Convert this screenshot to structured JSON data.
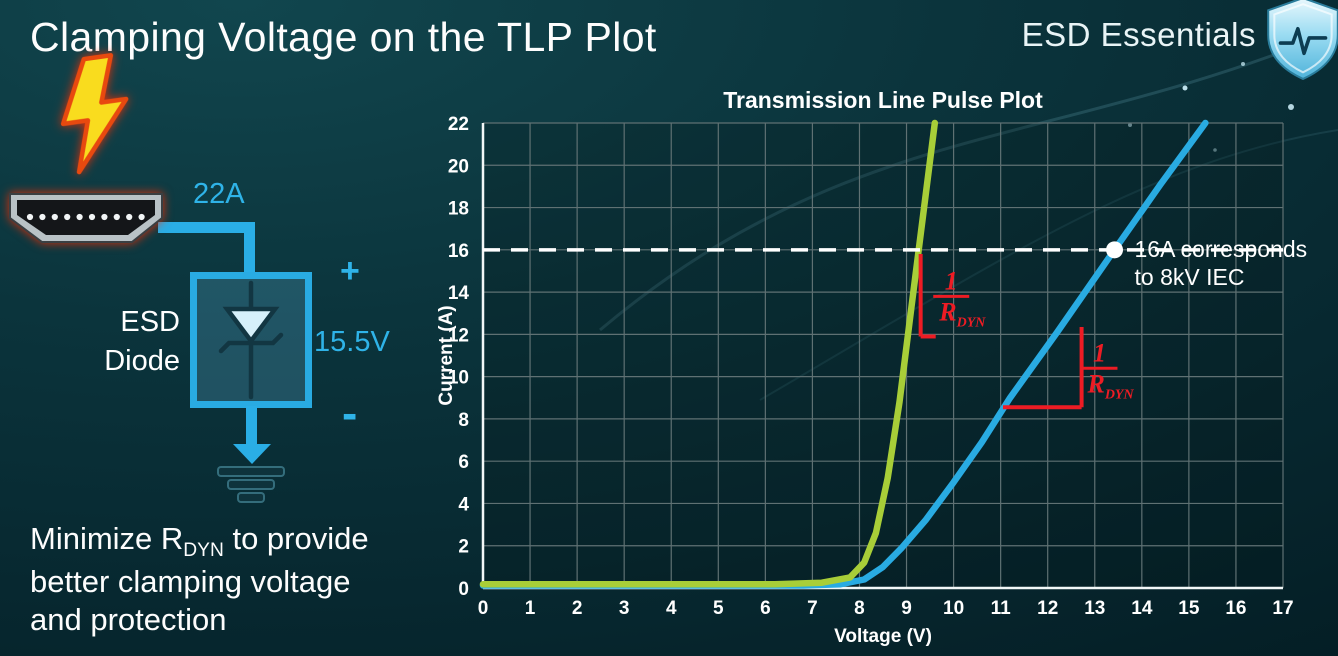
{
  "slide": {
    "title": "Clamping Voltage on the TLP Plot",
    "brand": "ESD Essentials"
  },
  "diagram": {
    "surge_current_label": "22A",
    "device_line1": "ESD",
    "device_line2": "Diode",
    "plus_label": "+",
    "minus_label": "-",
    "clamp_voltage_label": "15.5V",
    "accent_color": "#29abe2"
  },
  "footer": {
    "line1_pre": "Minimize R",
    "line1_sub": "DYN",
    "line1_post": " to provide",
    "line2": "better clamping voltage",
    "line3": "and protection"
  },
  "chart_data": {
    "type": "line",
    "title": "Transmission Line Pulse Plot",
    "xlabel": "Voltage (V)",
    "ylabel": "Current (A)",
    "xlim": [
      0,
      17
    ],
    "ylim": [
      0,
      22
    ],
    "x_ticks": [
      0,
      1,
      2,
      3,
      4,
      5,
      6,
      7,
      8,
      9,
      10,
      11,
      12,
      13,
      14,
      15,
      16,
      17
    ],
    "y_ticks": [
      0,
      2,
      4,
      6,
      8,
      10,
      12,
      14,
      16,
      18,
      20,
      22
    ],
    "grid": true,
    "grid_color": "#5f7173",
    "series": [
      {
        "name": "blue-high-rdyn",
        "color": "#29abe2",
        "points": [
          [
            0,
            0.12
          ],
          [
            6.8,
            0.12
          ],
          [
            7.6,
            0.18
          ],
          [
            8.1,
            0.4
          ],
          [
            8.5,
            1.0
          ],
          [
            8.9,
            1.9
          ],
          [
            9.4,
            3.2
          ],
          [
            10.0,
            5.0
          ],
          [
            10.6,
            6.9
          ],
          [
            11.2,
            9.0
          ],
          [
            12.2,
            12.1
          ],
          [
            13.42,
            16.0
          ],
          [
            14.4,
            19.1
          ],
          [
            15.35,
            22
          ]
        ]
      },
      {
        "name": "green-low-rdyn",
        "color": "#a8ce38",
        "points": [
          [
            0,
            0.18
          ],
          [
            6.2,
            0.18
          ],
          [
            7.2,
            0.25
          ],
          [
            7.8,
            0.5
          ],
          [
            8.1,
            1.2
          ],
          [
            8.35,
            2.6
          ],
          [
            8.6,
            5.2
          ],
          [
            8.85,
            8.8
          ],
          [
            9.1,
            13.2
          ],
          [
            9.35,
            17.6
          ],
          [
            9.6,
            22
          ]
        ]
      }
    ],
    "reference_line": {
      "y": 16,
      "color": "#ffffff",
      "style": "dashed"
    },
    "reference_point": {
      "x": 13.42,
      "y": 16,
      "color": "#ffffff"
    },
    "reference_label": {
      "line1": "16A corresponds",
      "line2": "to 8kV IEC",
      "color": "#ffffff"
    },
    "slope_label": {
      "numerator": "1",
      "denominator": "R",
      "denominator_sub": "DYN",
      "color": "#ed1c24"
    },
    "slope_markers": [
      {
        "segments": [
          [
            [
              9.3,
              15.8
            ],
            [
              9.3,
              11.9
            ]
          ],
          [
            [
              9.3,
              11.9
            ],
            [
              9.62,
              11.9
            ]
          ]
        ],
        "label_x": 9.95,
        "label_y": 13.7
      },
      {
        "segments": [
          [
            [
              11.05,
              8.55
            ],
            [
              12.72,
              8.55
            ]
          ],
          [
            [
              12.72,
              8.55
            ],
            [
              12.72,
              12.35
            ]
          ]
        ],
        "label_x": 13.1,
        "label_y": 10.3
      }
    ]
  }
}
